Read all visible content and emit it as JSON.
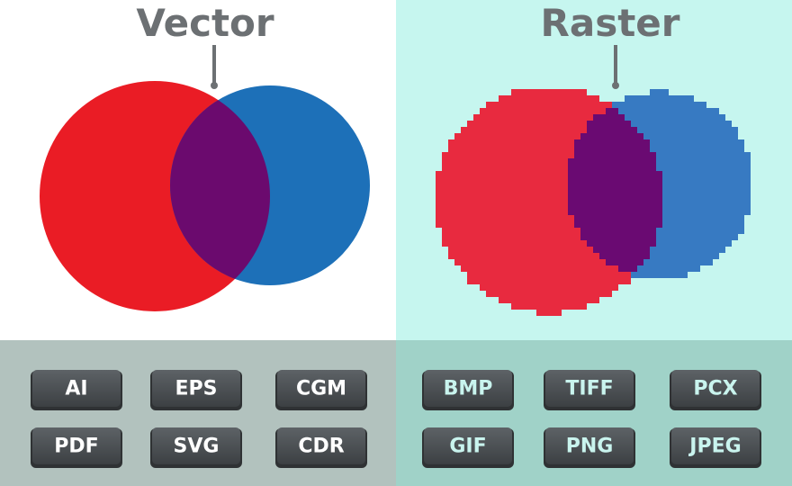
{
  "panels": [
    {
      "title": "Vector",
      "formats": [
        "AI",
        "EPS",
        "CGM",
        "PDF",
        "SVG",
        "CDR"
      ]
    },
    {
      "title": "Raster",
      "formats": [
        "BMP",
        "TIFF",
        "PCX",
        "GIF",
        "PNG",
        "JPEG"
      ]
    }
  ]
}
